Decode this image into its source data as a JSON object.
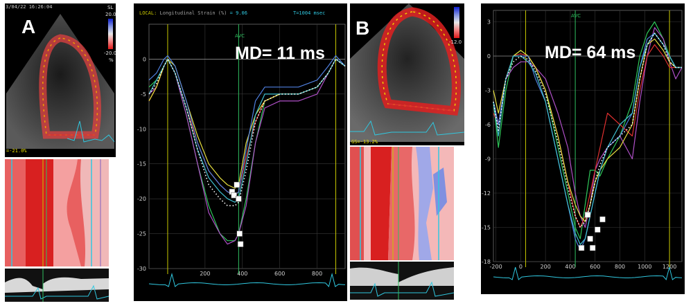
{
  "labels": {
    "panel_a": "A",
    "panel_b": "B",
    "md_a": "MD= 11 ms",
    "md_b": "MD= 64 ms",
    "avc_a": "AVC",
    "avc_b": "AVC",
    "header_local": "LOCAL:",
    "header_measure": "Longitudinal Strain (%)",
    "header_value": "= 9.06",
    "header_time": "T=1004 msec",
    "gs_a": "=-21.0%",
    "gs_b": "GS=-13.2%",
    "scale_a_top": "20.0",
    "scale_a_bottom": "-20.0",
    "scale_a_unit": "%",
    "scale_a_label": "SL",
    "scale_b_bottom": "-12.0",
    "date_a": "3/04/22 16:26:04"
  },
  "colors": {
    "background": "#000000",
    "grid": "#3a3a3a",
    "avc_line": "#c8c800",
    "ecg": "#30c8e0",
    "marker": "#ffffff"
  },
  "chart_data": [
    {
      "type": "line",
      "panel": "A",
      "xlabel": "",
      "ylabel": "",
      "xlim": [
        -100,
        950
      ],
      "ylim": [
        -30,
        5
      ],
      "x_ticks": [
        200,
        400,
        600,
        800
      ],
      "y_ticks": [
        0,
        -5,
        -10,
        -15,
        -20,
        -25,
        -30
      ],
      "grid": true,
      "vertical_markers": [
        0,
        380,
        900
      ],
      "series": [
        {
          "color": "#2fc85a",
          "x": [
            -100,
            -60,
            -20,
            0,
            40,
            100,
            160,
            220,
            280,
            320,
            360,
            380,
            420,
            470,
            520,
            600,
            700,
            800,
            860,
            900,
            950
          ],
          "y": [
            -4,
            -3,
            -1,
            0,
            -2,
            -8,
            -15,
            -21,
            -25,
            -26,
            -26,
            -25,
            -20,
            -12,
            -6,
            -5,
            -5,
            -4,
            -2,
            0,
            -1
          ]
        },
        {
          "color": "#b050c8",
          "x": [
            -100,
            -60,
            -20,
            0,
            40,
            100,
            160,
            220,
            280,
            320,
            360,
            380,
            420,
            470,
            520,
            600,
            700,
            800,
            860,
            900,
            950
          ],
          "y": [
            -5,
            -4,
            -1,
            0,
            -2,
            -8,
            -15,
            -22,
            -25,
            -26.5,
            -26,
            -25,
            -21,
            -12,
            -7,
            -6,
            -6,
            -5,
            -2,
            0,
            -1
          ]
        },
        {
          "color": "#e03030",
          "x": [
            -100,
            -60,
            -20,
            0,
            40,
            100,
            160,
            220,
            280,
            320,
            360,
            380,
            420,
            470,
            520,
            600,
            700,
            800,
            860,
            900,
            950
          ],
          "y": [
            -6,
            -4,
            -1,
            0,
            -2,
            -7,
            -12,
            -16,
            -18,
            -19,
            -19.5,
            -19,
            -14,
            -9,
            -6,
            -5,
            -5,
            -4,
            -2,
            0,
            -1
          ]
        },
        {
          "color": "#e8e040",
          "x": [
            -100,
            -60,
            -20,
            0,
            40,
            100,
            160,
            220,
            280,
            320,
            360,
            380,
            420,
            470,
            520,
            600,
            700,
            800,
            860,
            900,
            950
          ],
          "y": [
            -6,
            -4,
            -1,
            0,
            -1,
            -6,
            -11,
            -15,
            -17,
            -18,
            -18.5,
            -18,
            -12,
            -8,
            -6,
            -5,
            -5,
            -4,
            -2,
            0,
            -1
          ]
        },
        {
          "color": "#5080e0",
          "x": [
            -100,
            -60,
            -20,
            0,
            40,
            100,
            160,
            220,
            280,
            320,
            360,
            380,
            420,
            470,
            520,
            600,
            700,
            800,
            860,
            900,
            950
          ],
          "y": [
            -3,
            -2,
            0,
            0.5,
            -1,
            -6,
            -12,
            -16,
            -18,
            -19,
            -19.5,
            -19,
            -13,
            -6,
            -4,
            -4,
            -4,
            -3,
            -1,
            0.5,
            -1
          ]
        },
        {
          "color": "#40c0d0",
          "x": [
            -100,
            -60,
            -20,
            0,
            40,
            100,
            160,
            220,
            280,
            320,
            360,
            380,
            420,
            470,
            520,
            600,
            700,
            800,
            860,
            900,
            950
          ],
          "y": [
            -5,
            -3,
            -1,
            0,
            -2,
            -7,
            -13,
            -17,
            -19,
            -20,
            -20.5,
            -20,
            -15,
            -8,
            -5,
            -5,
            -5,
            -4,
            -2,
            0,
            -1
          ]
        },
        {
          "color": "#ffffff",
          "dashed": true,
          "x": [
            -100,
            -60,
            -20,
            0,
            40,
            100,
            160,
            220,
            280,
            320,
            360,
            380,
            420,
            470,
            520,
            600,
            700,
            800,
            860,
            900,
            950
          ],
          "y": [
            -5,
            -3.5,
            -1,
            0,
            -2,
            -7,
            -13,
            -18,
            -20,
            -21,
            -21,
            -20.5,
            -16,
            -9,
            -6,
            -5,
            -5,
            -4,
            -2,
            0,
            -1
          ]
        }
      ],
      "peak_markers": [
        {
          "x": 345,
          "y": -19
        },
        {
          "x": 355,
          "y": -19.5
        },
        {
          "x": 370,
          "y": -18
        },
        {
          "x": 380,
          "y": -20
        },
        {
          "x": 385,
          "y": -25
        },
        {
          "x": 390,
          "y": -26.5
        }
      ]
    },
    {
      "type": "line",
      "panel": "B",
      "xlabel": "",
      "ylabel": "",
      "xlim": [
        -220,
        1300
      ],
      "ylim": [
        -18,
        4
      ],
      "x_ticks": [
        -200,
        0,
        200,
        400,
        600,
        800,
        1000,
        1200
      ],
      "y_ticks": [
        3,
        0,
        -3,
        -6,
        -9,
        -12,
        -15,
        -18
      ],
      "grid": true,
      "vertical_markers": [
        40,
        440,
        1200
      ],
      "series": [
        {
          "color": "#2fc85a",
          "x": [
            -220,
            -180,
            -120,
            -60,
            0,
            60,
            120,
            200,
            300,
            380,
            440,
            480,
            520,
            560,
            600,
            640,
            700,
            800,
            900,
            960,
            1020,
            1080,
            1150,
            1200,
            1250,
            1300
          ],
          "y": [
            -4,
            -8,
            -3,
            0,
            0.5,
            0,
            -1,
            -3,
            -8,
            -12,
            -15,
            -16,
            -13,
            -10,
            -10,
            -10.5,
            -9,
            -7,
            -4,
            0,
            2,
            3,
            1.5,
            0,
            -1,
            -1
          ]
        },
        {
          "color": "#b050c8",
          "x": [
            -220,
            -180,
            -120,
            -60,
            0,
            60,
            120,
            200,
            300,
            380,
            440,
            480,
            520,
            560,
            600,
            640,
            700,
            800,
            900,
            960,
            1020,
            1080,
            1150,
            1200,
            1250,
            1300
          ],
          "y": [
            -4,
            -6,
            -2,
            -1,
            -0.5,
            -0.5,
            -1,
            -2,
            -5,
            -8,
            -12,
            -14,
            -15,
            -13,
            -10,
            -9,
            -8,
            -7,
            -9,
            -4,
            0,
            2.5,
            1.5,
            -0.5,
            -2,
            -1
          ]
        },
        {
          "color": "#e03030",
          "x": [
            -220,
            -180,
            -120,
            -60,
            0,
            60,
            120,
            200,
            300,
            380,
            440,
            480,
            520,
            560,
            600,
            640,
            700,
            800,
            900,
            960,
            1020,
            1080,
            1150,
            1200,
            1250,
            1300
          ],
          "y": [
            -5,
            -6,
            -2,
            0,
            0.2,
            0,
            -1,
            -3,
            -7,
            -11,
            -14,
            -15,
            -14,
            -12,
            -10,
            -8,
            -5,
            -6,
            -7,
            -3,
            0,
            1,
            0,
            -1,
            -1,
            -1
          ]
        },
        {
          "color": "#e8e040",
          "x": [
            -220,
            -180,
            -120,
            -60,
            0,
            60,
            120,
            200,
            300,
            380,
            440,
            480,
            520,
            560,
            600,
            640,
            700,
            800,
            900,
            960,
            1020,
            1080,
            1150,
            1200,
            1250,
            1300
          ],
          "y": [
            -3,
            -5,
            -2,
            0,
            0.5,
            0,
            -1,
            -3,
            -7,
            -11,
            -13,
            -14,
            -14.5,
            -13,
            -11,
            -10,
            -9,
            -8,
            -6,
            -2,
            1,
            1.5,
            0.5,
            -0.5,
            -1,
            -1
          ]
        },
        {
          "color": "#5080e0",
          "x": [
            -220,
            -180,
            -120,
            -60,
            0,
            60,
            120,
            200,
            300,
            380,
            440,
            480,
            520,
            560,
            600,
            640,
            700,
            800,
            900,
            960,
            1020,
            1080,
            1150,
            1200,
            1250,
            1300
          ],
          "y": [
            -4,
            -6,
            -2,
            0,
            0,
            0,
            -2,
            -4,
            -9,
            -13,
            -16,
            -17,
            -16,
            -14,
            -12,
            -10,
            -8,
            -7,
            -5,
            -1,
            1.5,
            2,
            1,
            0,
            -1,
            -1
          ]
        },
        {
          "color": "#40c0d0",
          "x": [
            -220,
            -180,
            -120,
            -60,
            0,
            60,
            120,
            200,
            300,
            380,
            440,
            480,
            520,
            560,
            600,
            640,
            700,
            800,
            900,
            960,
            1020,
            1080,
            1150,
            1200,
            1250,
            1300
          ],
          "y": [
            -4,
            -7,
            -2,
            0,
            0,
            -0.5,
            -1.5,
            -4,
            -9,
            -13,
            -15.5,
            -16.5,
            -16,
            -14,
            -12,
            -10,
            -8,
            -6,
            -5,
            -1,
            1,
            2,
            1,
            0,
            -1,
            -1
          ]
        },
        {
          "color": "#ffffff",
          "dashed": true,
          "x": [
            -220,
            -180,
            -120,
            -60,
            0,
            60,
            120,
            200,
            300,
            380,
            440,
            480,
            520,
            560,
            600,
            640,
            700,
            800,
            900,
            960,
            1020,
            1080,
            1150,
            1200,
            1250,
            1300
          ],
          "y": [
            -4,
            -6.5,
            -2,
            -0.5,
            0,
            -0.3,
            -1.3,
            -3.3,
            -7.5,
            -11.5,
            -14,
            -15,
            -14.5,
            -13,
            -11,
            -9.5,
            -8,
            -7,
            -6,
            -2,
            1,
            2,
            1,
            -0.5,
            -1,
            -1
          ]
        }
      ],
      "peak_markers": [
        {
          "x": 490,
          "y": -16.8
        },
        {
          "x": 540,
          "y": -13.9
        },
        {
          "x": 560,
          "y": -16
        },
        {
          "x": 580,
          "y": -16.8
        },
        {
          "x": 620,
          "y": -15.2
        },
        {
          "x": 660,
          "y": -14.3
        }
      ]
    }
  ]
}
